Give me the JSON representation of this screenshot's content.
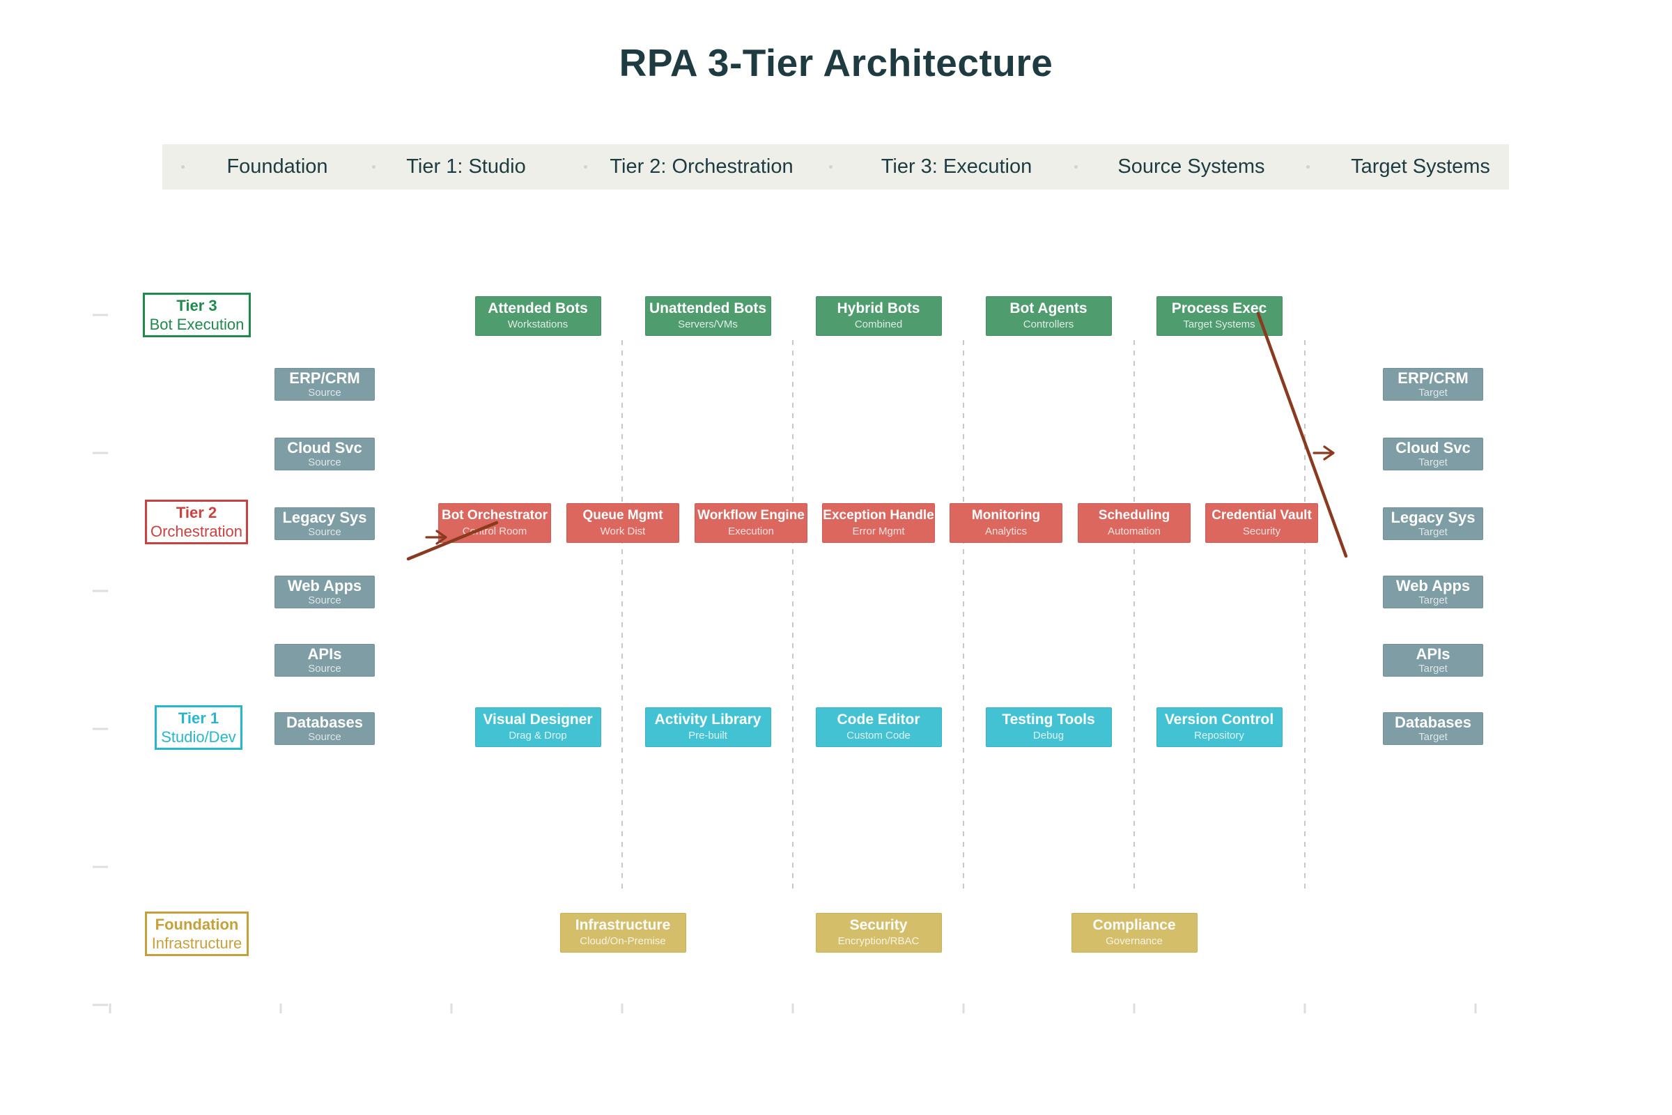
{
  "title": "RPA 3-Tier Architecture",
  "header": {
    "bg": "#edefe8",
    "text_color": "#1d3b40",
    "items": [
      "Foundation",
      "Tier 1: Studio",
      "Tier 2: Orchestration",
      "Tier 3: Execution",
      "Source Systems",
      "Target Systems"
    ]
  },
  "tier_labels": [
    {
      "id": "tier3",
      "line1": "Tier 3",
      "line2": "Bot Execution",
      "color": "#1f8a4c"
    },
    {
      "id": "tier2",
      "line1": "Tier 2",
      "line2": "Orchestration",
      "color": "#cb4140"
    },
    {
      "id": "tier1",
      "line1": "Tier 1",
      "line2": "Studio/Dev",
      "color": "#27b7cc"
    },
    {
      "id": "foundation",
      "line1": "Foundation",
      "line2": "Infrastructure",
      "color": "#c6a03a"
    }
  ],
  "rows": {
    "tier3": {
      "color": "#4f9c6e",
      "border": "#468e63",
      "items": [
        {
          "label": "Attended Bots",
          "sub": "Workstations"
        },
        {
          "label": "Unattended Bots",
          "sub": "Servers/VMs"
        },
        {
          "label": "Hybrid Bots",
          "sub": "Combined"
        },
        {
          "label": "Bot Agents",
          "sub": "Controllers"
        },
        {
          "label": "Process Exec",
          "sub": "Target Systems"
        }
      ]
    },
    "tier2": {
      "color": "#dc675e",
      "border": "#cf5b54",
      "items": [
        {
          "label": "Bot Orchestrator",
          "sub": "Control Room"
        },
        {
          "label": "Queue Mgmt",
          "sub": "Work Dist"
        },
        {
          "label": "Workflow Engine",
          "sub": "Execution"
        },
        {
          "label": "Exception Handle",
          "sub": "Error Mgmt"
        },
        {
          "label": "Monitoring",
          "sub": "Analytics"
        },
        {
          "label": "Scheduling",
          "sub": "Automation"
        },
        {
          "label": "Credential Vault",
          "sub": "Security"
        }
      ]
    },
    "tier1": {
      "color": "#43c2d3",
      "border": "#3ab2c3",
      "items": [
        {
          "label": "Visual Designer",
          "sub": "Drag & Drop"
        },
        {
          "label": "Activity Library",
          "sub": "Pre-built"
        },
        {
          "label": "Code Editor",
          "sub": "Custom Code"
        },
        {
          "label": "Testing Tools",
          "sub": "Debug"
        },
        {
          "label": "Version Control",
          "sub": "Repository"
        }
      ]
    },
    "foundation": {
      "color": "#d5be69",
      "border": "#c8b056",
      "items": [
        {
          "label": "Infrastructure",
          "sub": "Cloud/On-Premise"
        },
        {
          "label": "Security",
          "sub": "Encryption/RBAC"
        },
        {
          "label": "Compliance",
          "sub": "Governance"
        }
      ]
    }
  },
  "source_systems": {
    "color": "#7e9da4",
    "border": "#729097",
    "sub": "Source",
    "items": [
      "ERP/CRM",
      "Cloud Svc",
      "Legacy Sys",
      "Web Apps",
      "APIs",
      "Databases"
    ]
  },
  "target_systems": {
    "color": "#7e9da4",
    "border": "#729097",
    "sub": "Target",
    "items": [
      "ERP/CRM",
      "Cloud Svc",
      "Legacy Sys",
      "Web Apps",
      "APIs",
      "Databases"
    ]
  },
  "annotations": {
    "arrow_color": "#8a3a1f",
    "arrows": [
      {
        "from": "Process Exec",
        "to": "Target Systems"
      },
      {
        "from": "Source Systems",
        "to": "Bot Orchestrator"
      }
    ]
  }
}
